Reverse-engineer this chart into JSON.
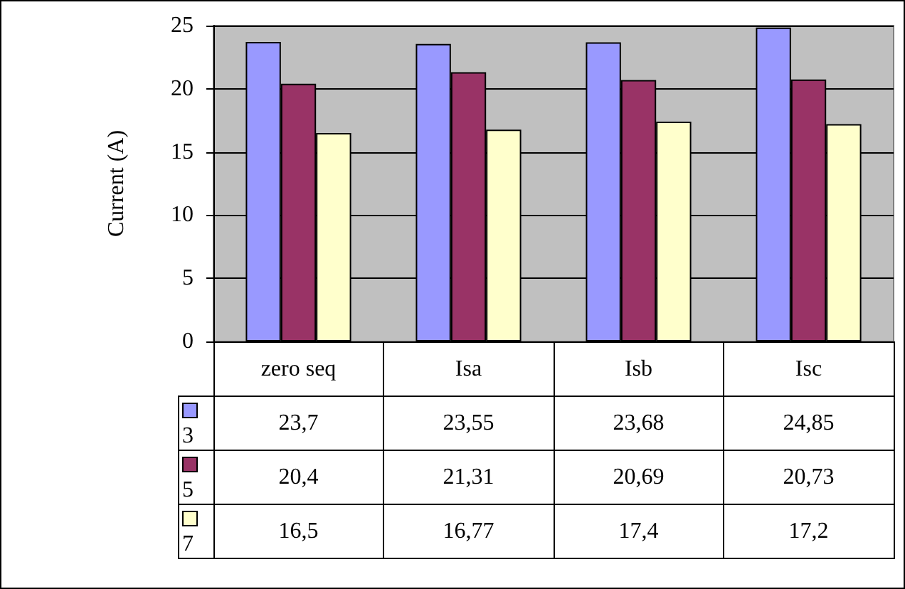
{
  "chart_data": {
    "type": "bar",
    "ylabel": "Current (A)",
    "categories": [
      "zero seq",
      "Isa",
      "Isb",
      "Isc"
    ],
    "series": [
      {
        "name": "3",
        "color": "#9999ff",
        "values": [
          23.7,
          23.55,
          23.68,
          24.85
        ],
        "value_labels": [
          "23,7",
          "23,55",
          "23,68",
          "24,85"
        ]
      },
      {
        "name": "5",
        "color": "#993366",
        "values": [
          20.4,
          21.31,
          20.69,
          20.73
        ],
        "value_labels": [
          "20,4",
          "21,31",
          "20,69",
          "20,73"
        ]
      },
      {
        "name": "7",
        "color": "#ffffcc",
        "values": [
          16.5,
          16.77,
          17.4,
          17.2
        ],
        "value_labels": [
          "16,5",
          "16,77",
          "17,4",
          "17,2"
        ]
      }
    ],
    "ylim": [
      0,
      25
    ],
    "yticks": [
      0,
      5,
      10,
      15,
      20,
      25
    ],
    "grid": "y",
    "legend": "bottom left"
  }
}
